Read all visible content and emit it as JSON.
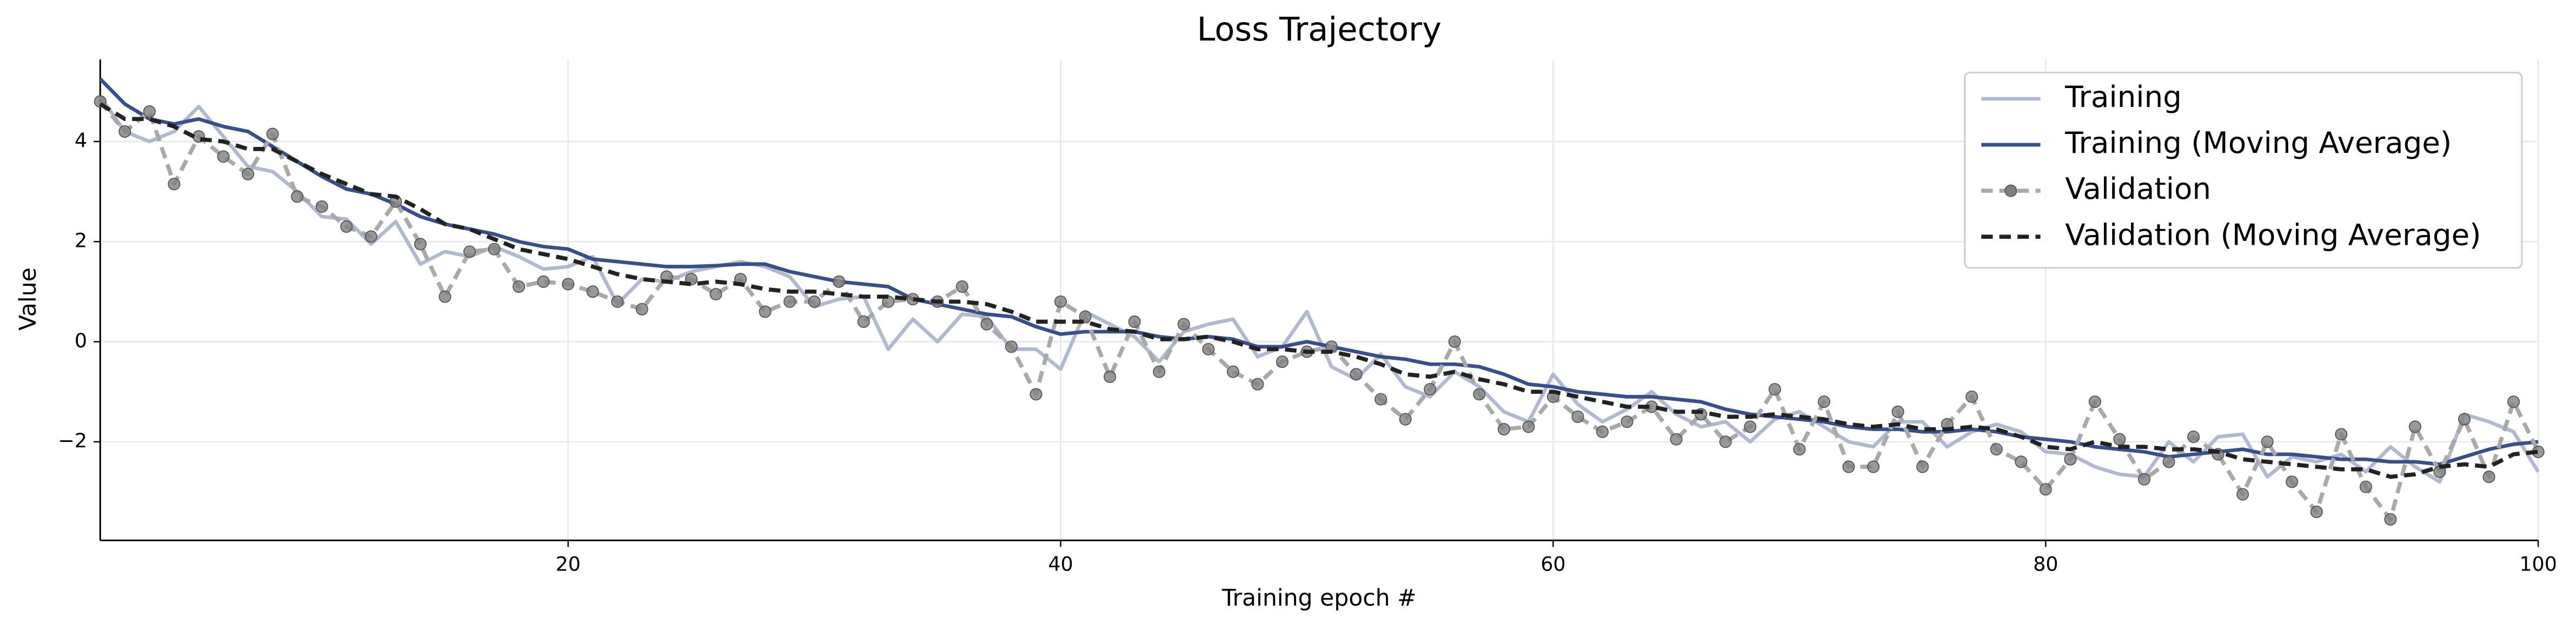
{
  "chart_data": {
    "type": "line",
    "title": "Loss Trajectory",
    "x_label": "Training epoch #",
    "y_label": "Value",
    "x": [
      1,
      2,
      3,
      4,
      5,
      6,
      7,
      8,
      9,
      10,
      11,
      12,
      13,
      14,
      15,
      16,
      17,
      18,
      19,
      20,
      21,
      22,
      23,
      24,
      25,
      26,
      27,
      28,
      29,
      30,
      31,
      32,
      33,
      34,
      35,
      36,
      37,
      38,
      39,
      40,
      41,
      42,
      43,
      44,
      45,
      46,
      47,
      48,
      49,
      50,
      51,
      52,
      53,
      54,
      55,
      56,
      57,
      58,
      59,
      60,
      61,
      62,
      63,
      64,
      65,
      66,
      67,
      68,
      69,
      70,
      71,
      72,
      73,
      74,
      75,
      76,
      77,
      78,
      79,
      80,
      81,
      82,
      83,
      84,
      85,
      86,
      87,
      88,
      89,
      90,
      91,
      92,
      93,
      94,
      95,
      96,
      97,
      98,
      99,
      100
    ],
    "series": [
      {
        "name": "Training",
        "color": "#b1b9cf",
        "linestyle": "solid",
        "values": [
          4.9,
          4.2,
          4.0,
          4.2,
          4.7,
          4.1,
          3.5,
          3.4,
          3.0,
          2.5,
          2.45,
          1.95,
          2.4,
          1.55,
          1.8,
          1.7,
          1.9,
          1.7,
          1.45,
          1.5,
          1.7,
          0.75,
          1.25,
          1.2,
          1.4,
          1.5,
          1.6,
          1.5,
          1.3,
          0.7,
          0.85,
          0.9,
          -0.15,
          0.45,
          0.0,
          0.55,
          0.5,
          -0.15,
          -0.15,
          -0.55,
          0.6,
          0.35,
          0.1,
          -0.4,
          0.2,
          0.35,
          0.45,
          -0.3,
          -0.1,
          0.6,
          -0.5,
          -0.75,
          -0.25,
          -0.9,
          -1.1,
          -0.6,
          -0.9,
          -1.4,
          -1.6,
          -0.65,
          -1.25,
          -1.6,
          -1.35,
          -1.0,
          -1.45,
          -1.7,
          -1.6,
          -2.0,
          -1.55,
          -1.4,
          -1.7,
          -2.0,
          -2.1,
          -1.6,
          -1.6,
          -2.1,
          -1.8,
          -1.65,
          -1.8,
          -2.2,
          -2.25,
          -2.5,
          -2.65,
          -2.7,
          -2.0,
          -2.4,
          -1.9,
          -1.85,
          -2.7,
          -2.3,
          -2.4,
          -2.25,
          -2.6,
          -2.1,
          -2.5,
          -2.8,
          -1.45,
          -1.6,
          -1.8,
          -2.6
        ]
      },
      {
        "name": "Training (Moving Average)",
        "color": "#3a4f8a",
        "linestyle": "solid",
        "values": [
          5.25,
          4.75,
          4.45,
          4.35,
          4.45,
          4.3,
          4.2,
          3.9,
          3.6,
          3.3,
          3.05,
          2.95,
          2.75,
          2.5,
          2.35,
          2.25,
          2.15,
          2.0,
          1.9,
          1.85,
          1.65,
          1.6,
          1.55,
          1.5,
          1.5,
          1.52,
          1.55,
          1.55,
          1.4,
          1.3,
          1.2,
          1.15,
          1.1,
          0.85,
          0.75,
          0.65,
          0.55,
          0.5,
          0.3,
          0.15,
          0.2,
          0.2,
          0.2,
          0.1,
          0.05,
          0.1,
          0.05,
          -0.1,
          -0.1,
          0.0,
          -0.1,
          -0.2,
          -0.3,
          -0.35,
          -0.45,
          -0.45,
          -0.5,
          -0.65,
          -0.85,
          -0.9,
          -1.0,
          -1.05,
          -1.1,
          -1.1,
          -1.15,
          -1.2,
          -1.35,
          -1.45,
          -1.5,
          -1.55,
          -1.6,
          -1.7,
          -1.75,
          -1.75,
          -1.8,
          -1.8,
          -1.75,
          -1.8,
          -1.9,
          -1.95,
          -2.0,
          -2.1,
          -2.15,
          -2.2,
          -2.3,
          -2.25,
          -2.2,
          -2.15,
          -2.25,
          -2.25,
          -2.3,
          -2.35,
          -2.35,
          -2.4,
          -2.4,
          -2.45,
          -2.3,
          -2.15,
          -2.05,
          -2.0
        ]
      },
      {
        "name": "Validation",
        "color": "#a9a9a9",
        "marker_color": "#7f7f7f",
        "linestyle": "dashed",
        "marker": "o",
        "values": [
          4.8,
          4.2,
          4.6,
          3.15,
          4.1,
          3.7,
          3.35,
          4.15,
          2.9,
          2.7,
          2.3,
          2.1,
          2.8,
          1.95,
          0.9,
          1.8,
          1.85,
          1.1,
          1.2,
          1.15,
          1.0,
          0.8,
          0.65,
          1.3,
          1.25,
          0.95,
          1.25,
          0.6,
          0.8,
          0.8,
          1.2,
          0.4,
          0.8,
          0.85,
          0.8,
          1.1,
          0.35,
          -0.1,
          -1.05,
          0.8,
          0.5,
          -0.7,
          0.4,
          -0.6,
          0.35,
          -0.15,
          -0.6,
          -0.85,
          -0.4,
          -0.2,
          -0.1,
          -0.65,
          -1.15,
          -1.55,
          -0.95,
          0.0,
          -1.05,
          -1.75,
          -1.7,
          -1.1,
          -1.5,
          -1.8,
          -1.6,
          -1.3,
          -1.95,
          -1.45,
          -2.0,
          -1.7,
          -0.95,
          -2.15,
          -1.2,
          -2.5,
          -2.5,
          -1.4,
          -2.5,
          -1.65,
          -1.1,
          -2.15,
          -2.4,
          -2.95,
          -2.35,
          -1.2,
          -1.95,
          -2.75,
          -2.4,
          -1.9,
          -2.25,
          -3.05,
          -2.0,
          -2.8,
          -3.4,
          -1.85,
          -2.9,
          -3.55,
          -1.7,
          -2.6,
          -1.55,
          -2.7,
          -1.2,
          -2.2
        ]
      },
      {
        "name": "Validation (Moving Average)",
        "color": "#222222",
        "linestyle": "dashed",
        "values": [
          4.75,
          4.45,
          4.45,
          4.3,
          4.05,
          4.0,
          3.85,
          3.85,
          3.6,
          3.35,
          3.15,
          2.95,
          2.9,
          2.65,
          2.35,
          2.25,
          2.05,
          1.85,
          1.75,
          1.65,
          1.5,
          1.35,
          1.25,
          1.2,
          1.15,
          1.2,
          1.15,
          1.05,
          1.0,
          1.0,
          0.95,
          0.9,
          0.9,
          0.85,
          0.8,
          0.8,
          0.75,
          0.6,
          0.4,
          0.4,
          0.4,
          0.25,
          0.2,
          0.05,
          0.05,
          0.1,
          0.0,
          -0.15,
          -0.15,
          -0.2,
          -0.2,
          -0.3,
          -0.45,
          -0.65,
          -0.7,
          -0.6,
          -0.75,
          -0.85,
          -1.0,
          -1.0,
          -1.1,
          -1.2,
          -1.3,
          -1.3,
          -1.4,
          -1.4,
          -1.5,
          -1.5,
          -1.45,
          -1.5,
          -1.55,
          -1.65,
          -1.7,
          -1.65,
          -1.75,
          -1.75,
          -1.7,
          -1.75,
          -1.9,
          -2.1,
          -2.15,
          -2.0,
          -2.1,
          -2.1,
          -2.15,
          -2.15,
          -2.2,
          -2.35,
          -2.4,
          -2.45,
          -2.5,
          -2.55,
          -2.55,
          -2.7,
          -2.65,
          -2.5,
          -2.45,
          -2.5,
          -2.25,
          -2.2
        ]
      }
    ],
    "xlim": [
      1,
      100
    ],
    "ylim": [
      -3.97,
      5.64
    ],
    "xticks": [
      20,
      40,
      60,
      80,
      100
    ],
    "yticks": [
      {
        "value": -2,
        "label": "−2"
      },
      0,
      2,
      4
    ],
    "grid": true,
    "legend": "upper right"
  }
}
